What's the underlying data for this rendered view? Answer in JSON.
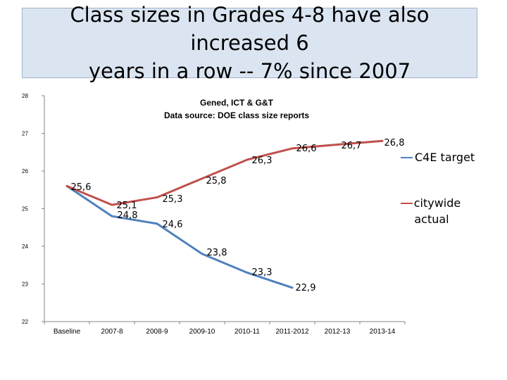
{
  "slide": {
    "title_line1": "Class sizes  in Grades 4-8 have also increased 6",
    "title_line2": "years in a row  -- 7% since 2007"
  },
  "chart_data": {
    "type": "line",
    "title": "Gened, ICT & G&T",
    "subtitle": "Data source: DOE class size reports",
    "categories": [
      "Baseline",
      "2007-8",
      "2008-9",
      "2009-10",
      "2010-11",
      "2011-2012",
      "2012-13",
      "2013-14"
    ],
    "ylim": [
      22,
      28
    ],
    "yticks": [
      "28",
      "27",
      "26",
      "25",
      "24",
      "23",
      "22"
    ],
    "grid": false,
    "legend_position": "right",
    "series": [
      {
        "name": "C4E target",
        "color": "#4f81bd",
        "values": [
          25.6,
          24.8,
          24.6,
          23.8,
          23.3,
          22.9,
          null,
          null
        ],
        "labels": [
          "",
          "24,8",
          "24,6",
          "23,8",
          "23,3",
          "22,9",
          "",
          ""
        ]
      },
      {
        "name": "citywide actual",
        "legend_lines": [
          "citywide",
          "actual"
        ],
        "color": "#c0504d",
        "values": [
          25.6,
          25.1,
          25.3,
          25.8,
          26.3,
          26.6,
          26.7,
          26.8
        ],
        "labels": [
          "25,6",
          "25,1",
          "25,3",
          "25,8",
          "26,3",
          "26,6",
          "26,7",
          "26,8"
        ]
      }
    ]
  }
}
